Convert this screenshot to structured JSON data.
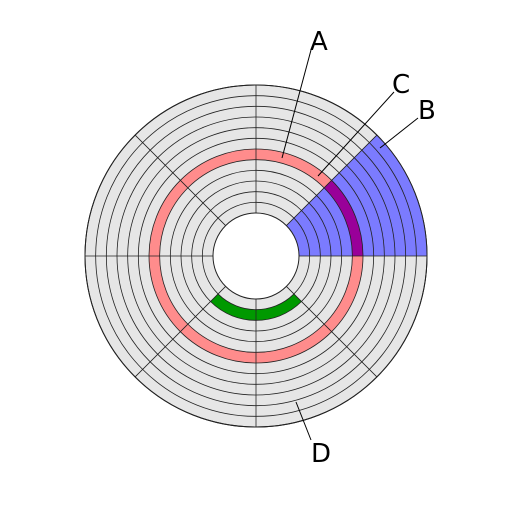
{
  "diagram": {
    "tracks": 12,
    "sectors": 8,
    "colors": {
      "platter": "#e6e6e6",
      "lines": "#222222",
      "hole": "#ffffff",
      "track": "#ff8c8c",
      "sector": "#7b7bff",
      "track_sector": "#990099",
      "cluster": "#009900"
    },
    "highlights": {
      "track_index": 5,
      "sector_index": 1,
      "cluster_track_index": 1,
      "cluster_sectors": [
        3,
        4
      ]
    },
    "labels": {
      "A": "A",
      "B": "B",
      "C": "C",
      "D": "D"
    }
  }
}
